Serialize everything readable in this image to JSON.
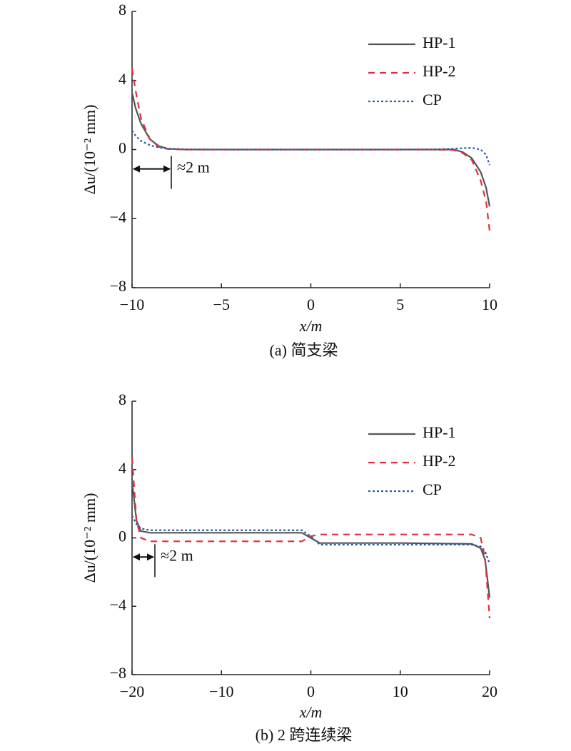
{
  "chart_data": [
    {
      "type": "line",
      "caption": "(a) 简支梁",
      "x_label": "x/m",
      "y_label": "Δu/(10⁻² mm)",
      "annotation": "≈2 m",
      "x": [
        -10,
        -9.8,
        -9.5,
        -9,
        -8.5,
        -8,
        -7,
        -5,
        0,
        5,
        7,
        8,
        8.5,
        9,
        9.5,
        9.8,
        10
      ],
      "series": [
        {
          "name": "HP-1",
          "color": "#555555",
          "style": "solid",
          "values": [
            3.3,
            2.4,
            1.5,
            0.6,
            0.2,
            0.05,
            0,
            0,
            0,
            0,
            0,
            0,
            -0.15,
            -0.5,
            -1.3,
            -2.2,
            -3.3
          ]
        },
        {
          "name": "HP-2",
          "color": "#e0303f",
          "style": "dashed",
          "values": [
            4.7,
            3.4,
            1.8,
            0.6,
            0.15,
            0.03,
            0,
            0,
            0,
            0,
            0,
            -0.03,
            -0.2,
            -0.6,
            -1.8,
            -3.0,
            -4.7
          ]
        },
        {
          "name": "CP",
          "color": "#2e5fa0",
          "style": "dotted",
          "values": [
            1.1,
            0.8,
            0.5,
            0.25,
            0.12,
            0.05,
            0.02,
            0,
            0,
            0,
            0.02,
            0.05,
            0.08,
            0.1,
            0,
            -0.3,
            -0.9
          ]
        }
      ],
      "xlim": [
        -10,
        10
      ],
      "xticks": [
        {
          "value": -10,
          "label": "−10"
        },
        {
          "value": -5,
          "label": "−5"
        },
        0,
        5,
        10
      ],
      "ylim": [
        -8,
        8
      ],
      "yticks": [
        {
          "value": -8,
          "label": "−8"
        },
        {
          "value": -4,
          "label": "−4"
        },
        0,
        4,
        8
      ],
      "legend": "upper right",
      "grid": false
    },
    {
      "type": "line",
      "caption": "(b) 2 跨连续梁",
      "x_label": "x/m",
      "y_label": "Δu/(10⁻² mm)",
      "annotation": "≈2 m",
      "x": [
        -20,
        -19.5,
        -19,
        -18,
        -10,
        -1,
        0,
        1,
        10,
        18,
        19,
        19.5,
        20
      ],
      "series": [
        {
          "name": "HP-1",
          "color": "#555555",
          "style": "solid",
          "values": [
            3.3,
            1.0,
            0.4,
            0.3,
            0.3,
            0.3,
            0,
            -0.3,
            -0.3,
            -0.35,
            -0.6,
            -1.3,
            -3.5
          ]
        },
        {
          "name": "HP-2",
          "color": "#e0303f",
          "style": "dashed",
          "values": [
            4.7,
            1.0,
            0,
            -0.2,
            -0.2,
            -0.2,
            0.1,
            0.2,
            0.2,
            0.2,
            0,
            -1.2,
            -4.7
          ]
        },
        {
          "name": "CP",
          "color": "#2e5fa0",
          "style": "dotted",
          "values": [
            1.3,
            0.8,
            0.55,
            0.45,
            0.45,
            0.45,
            0.1,
            -0.4,
            -0.4,
            -0.4,
            -0.5,
            -0.8,
            -1.5
          ]
        }
      ],
      "xlim": [
        -20,
        20
      ],
      "xticks": [
        {
          "value": -20,
          "label": "−20"
        },
        {
          "value": -10,
          "label": "−10"
        },
        0,
        10,
        20
      ],
      "ylim": [
        -8,
        8
      ],
      "yticks": [
        {
          "value": -8,
          "label": "−8"
        },
        {
          "value": -4,
          "label": "−4"
        },
        0,
        4,
        8
      ],
      "legend": "upper right",
      "grid": false
    }
  ]
}
